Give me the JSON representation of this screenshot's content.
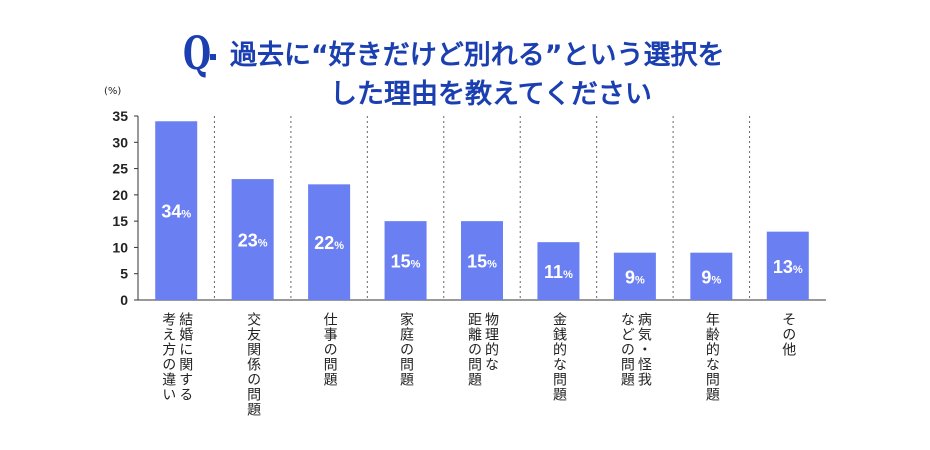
{
  "title": {
    "q_mark": "Q",
    "line1": "過去に“好きだけど別れる”という選択を",
    "line2": "した理由を教えてください"
  },
  "colors": {
    "bar": "#6a7ff2",
    "title": "#1b3fb0",
    "bar_label": "#ffffff"
  },
  "chart_data": {
    "type": "bar",
    "ylabel": "(%)",
    "ylim": [
      0,
      35
    ],
    "yticks": [
      0,
      5,
      10,
      15,
      20,
      25,
      30,
      35
    ],
    "grid": "vertical dashed separators between categories",
    "categories": [
      "結婚に関する\n考え方の違い",
      "交友関係の問題",
      "仕事の問題",
      "家庭の問題",
      "物理的な\n距離の問題",
      "金銭的な問題",
      "病気・怪我\nなどの問題",
      "年齢的な問題",
      "その他"
    ],
    "values": [
      34,
      23,
      22,
      15,
      15,
      11,
      9,
      9,
      13
    ],
    "data_labels": [
      "34%",
      "23%",
      "22%",
      "15%",
      "15%",
      "11%",
      "9%",
      "9%",
      "13%"
    ]
  }
}
